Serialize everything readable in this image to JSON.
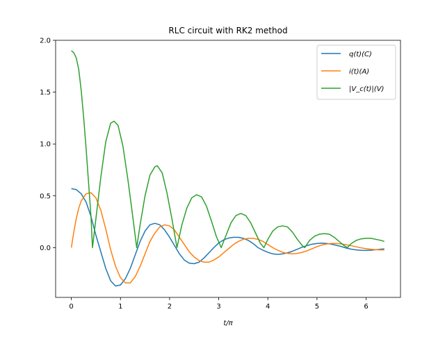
{
  "chart_data": {
    "type": "line",
    "title": "RLC circuit with RK2 method",
    "xlabel": "t/π",
    "ylabel": "",
    "xlim": [
      -0.32,
      6.7
    ],
    "ylim": [
      -0.48,
      2.0
    ],
    "xticks": [
      0,
      1,
      2,
      3,
      4,
      5,
      6
    ],
    "yticks": [
      0.0,
      0.5,
      1.0,
      1.5,
      2.0
    ],
    "xtick_labels": [
      "0",
      "1",
      "2",
      "3",
      "4",
      "5",
      "6"
    ],
    "ytick_labels": [
      "0.0",
      "0.5",
      "1.0",
      "1.5",
      "2.0"
    ],
    "grid": false,
    "legend_position": "upper right",
    "x_end": 6.37,
    "series": [
      {
        "name": "q(t)(C)",
        "color": "#1f77b4",
        "points": [
          [
            0,
            0.57
          ],
          [
            0.1,
            0.56
          ],
          [
            0.2,
            0.52
          ],
          [
            0.3,
            0.44
          ],
          [
            0.4,
            0.3
          ],
          [
            0.5,
            0.12
          ],
          [
            0.6,
            -0.04
          ],
          [
            0.7,
            -0.2
          ],
          [
            0.8,
            -0.32
          ],
          [
            0.9,
            -0.37
          ],
          [
            1.0,
            -0.36
          ],
          [
            1.1,
            -0.3
          ],
          [
            1.2,
            -0.2
          ],
          [
            1.3,
            -0.07
          ],
          [
            1.4,
            0.06
          ],
          [
            1.5,
            0.16
          ],
          [
            1.6,
            0.22
          ],
          [
            1.7,
            0.235
          ],
          [
            1.8,
            0.22
          ],
          [
            1.9,
            0.17
          ],
          [
            2.0,
            0.1
          ],
          [
            2.1,
            0.02
          ],
          [
            2.2,
            -0.06
          ],
          [
            2.3,
            -0.12
          ],
          [
            2.4,
            -0.15
          ],
          [
            2.5,
            -0.155
          ],
          [
            2.6,
            -0.14
          ],
          [
            2.7,
            -0.1
          ],
          [
            2.8,
            -0.05
          ],
          [
            2.9,
            0.0
          ],
          [
            3.0,
            0.045
          ],
          [
            3.1,
            0.075
          ],
          [
            3.2,
            0.092
          ],
          [
            3.3,
            0.1
          ],
          [
            3.4,
            0.1
          ],
          [
            3.5,
            0.09
          ],
          [
            3.6,
            0.07
          ],
          [
            3.7,
            0.04
          ],
          [
            3.8,
            0.0
          ],
          [
            3.9,
            -0.025
          ],
          [
            4.0,
            -0.045
          ],
          [
            4.1,
            -0.06
          ],
          [
            4.2,
            -0.065
          ],
          [
            4.3,
            -0.06
          ],
          [
            4.4,
            -0.05
          ],
          [
            4.5,
            -0.035
          ],
          [
            4.6,
            -0.015
          ],
          [
            4.7,
            0.005
          ],
          [
            4.8,
            0.02
          ],
          [
            4.9,
            0.033
          ],
          [
            5.0,
            0.04
          ],
          [
            5.1,
            0.043
          ],
          [
            5.2,
            0.04
          ],
          [
            5.3,
            0.033
          ],
          [
            5.4,
            0.022
          ],
          [
            5.5,
            0.01
          ],
          [
            5.6,
            -0.005
          ],
          [
            5.7,
            -0.015
          ],
          [
            5.8,
            -0.022
          ],
          [
            5.9,
            -0.026
          ],
          [
            6.0,
            -0.027
          ],
          [
            6.1,
            -0.025
          ],
          [
            6.2,
            -0.02
          ],
          [
            6.3,
            -0.015
          ],
          [
            6.37,
            -0.012
          ]
        ]
      },
      {
        "name": "i(t)(A)",
        "color": "#ff7f0e",
        "points": [
          [
            0,
            0.0
          ],
          [
            0.05,
            0.15
          ],
          [
            0.1,
            0.28
          ],
          [
            0.15,
            0.38
          ],
          [
            0.2,
            0.45
          ],
          [
            0.3,
            0.52
          ],
          [
            0.4,
            0.53
          ],
          [
            0.5,
            0.48
          ],
          [
            0.6,
            0.36
          ],
          [
            0.7,
            0.18
          ],
          [
            0.8,
            -0.02
          ],
          [
            0.9,
            -0.18
          ],
          [
            1.0,
            -0.29
          ],
          [
            1.1,
            -0.34
          ],
          [
            1.2,
            -0.34
          ],
          [
            1.3,
            -0.28
          ],
          [
            1.4,
            -0.18
          ],
          [
            1.5,
            -0.06
          ],
          [
            1.6,
            0.06
          ],
          [
            1.7,
            0.14
          ],
          [
            1.8,
            0.2
          ],
          [
            1.9,
            0.22
          ],
          [
            2.0,
            0.21
          ],
          [
            2.1,
            0.17
          ],
          [
            2.2,
            0.1
          ],
          [
            2.3,
            0.03
          ],
          [
            2.4,
            -0.04
          ],
          [
            2.5,
            -0.09
          ],
          [
            2.6,
            -0.125
          ],
          [
            2.7,
            -0.14
          ],
          [
            2.8,
            -0.14
          ],
          [
            2.9,
            -0.12
          ],
          [
            3.0,
            -0.09
          ],
          [
            3.1,
            -0.05
          ],
          [
            3.2,
            -0.01
          ],
          [
            3.3,
            0.03
          ],
          [
            3.4,
            0.06
          ],
          [
            3.5,
            0.08
          ],
          [
            3.6,
            0.09
          ],
          [
            3.7,
            0.09
          ],
          [
            3.8,
            0.08
          ],
          [
            3.9,
            0.06
          ],
          [
            4.0,
            0.03
          ],
          [
            4.1,
            0.0
          ],
          [
            4.2,
            -0.025
          ],
          [
            4.3,
            -0.045
          ],
          [
            4.4,
            -0.055
          ],
          [
            4.5,
            -0.06
          ],
          [
            4.6,
            -0.055
          ],
          [
            4.7,
            -0.045
          ],
          [
            4.8,
            -0.03
          ],
          [
            4.9,
            -0.01
          ],
          [
            5.0,
            0.01
          ],
          [
            5.1,
            0.025
          ],
          [
            5.2,
            0.035
          ],
          [
            5.3,
            0.04
          ],
          [
            5.4,
            0.04
          ],
          [
            5.5,
            0.035
          ],
          [
            5.6,
            0.028
          ],
          [
            5.7,
            0.018
          ],
          [
            5.8,
            0.008
          ],
          [
            5.9,
            -0.002
          ],
          [
            6.0,
            -0.01
          ],
          [
            6.1,
            -0.016
          ],
          [
            6.2,
            -0.02
          ],
          [
            6.3,
            -0.022
          ],
          [
            6.37,
            -0.022
          ]
        ]
      },
      {
        "name": "|V_c(t)|(V)",
        "color": "#2ca02c",
        "points": [
          [
            0,
            1.9
          ],
          [
            0.05,
            1.88
          ],
          [
            0.1,
            1.83
          ],
          [
            0.15,
            1.72
          ],
          [
            0.2,
            1.52
          ],
          [
            0.25,
            1.26
          ],
          [
            0.3,
            0.96
          ],
          [
            0.35,
            0.63
          ],
          [
            0.4,
            0.3
          ],
          [
            0.43,
            0.0
          ],
          [
            0.5,
            0.28
          ],
          [
            0.6,
            0.68
          ],
          [
            0.7,
            1.02
          ],
          [
            0.8,
            1.2
          ],
          [
            0.87,
            1.22
          ],
          [
            0.95,
            1.18
          ],
          [
            1.05,
            0.98
          ],
          [
            1.15,
            0.66
          ],
          [
            1.25,
            0.3
          ],
          [
            1.33,
            0.0
          ],
          [
            1.4,
            0.22
          ],
          [
            1.5,
            0.5
          ],
          [
            1.6,
            0.7
          ],
          [
            1.7,
            0.78
          ],
          [
            1.75,
            0.79
          ],
          [
            1.85,
            0.72
          ],
          [
            1.95,
            0.52
          ],
          [
            2.05,
            0.27
          ],
          [
            2.15,
            0.0
          ],
          [
            2.25,
            0.22
          ],
          [
            2.35,
            0.38
          ],
          [
            2.45,
            0.48
          ],
          [
            2.55,
            0.51
          ],
          [
            2.65,
            0.49
          ],
          [
            2.75,
            0.4
          ],
          [
            2.85,
            0.26
          ],
          [
            2.95,
            0.11
          ],
          [
            3.05,
            0.0
          ],
          [
            3.15,
            0.12
          ],
          [
            3.25,
            0.24
          ],
          [
            3.35,
            0.31
          ],
          [
            3.45,
            0.33
          ],
          [
            3.55,
            0.31
          ],
          [
            3.65,
            0.24
          ],
          [
            3.75,
            0.14
          ],
          [
            3.85,
            0.04
          ],
          [
            3.92,
            0.0
          ],
          [
            4.0,
            0.08
          ],
          [
            4.1,
            0.16
          ],
          [
            4.2,
            0.2
          ],
          [
            4.3,
            0.21
          ],
          [
            4.4,
            0.2
          ],
          [
            4.5,
            0.15
          ],
          [
            4.6,
            0.08
          ],
          [
            4.7,
            0.02
          ],
          [
            4.75,
            0.0
          ],
          [
            4.85,
            0.07
          ],
          [
            4.95,
            0.11
          ],
          [
            5.05,
            0.13
          ],
          [
            5.15,
            0.135
          ],
          [
            5.25,
            0.13
          ],
          [
            5.35,
            0.1
          ],
          [
            5.45,
            0.06
          ],
          [
            5.55,
            0.02
          ],
          [
            5.62,
            0.0
          ],
          [
            5.7,
            0.04
          ],
          [
            5.8,
            0.07
          ],
          [
            5.9,
            0.085
          ],
          [
            6.0,
            0.09
          ],
          [
            6.1,
            0.09
          ],
          [
            6.2,
            0.08
          ],
          [
            6.3,
            0.07
          ],
          [
            6.37,
            0.06
          ]
        ]
      }
    ]
  }
}
